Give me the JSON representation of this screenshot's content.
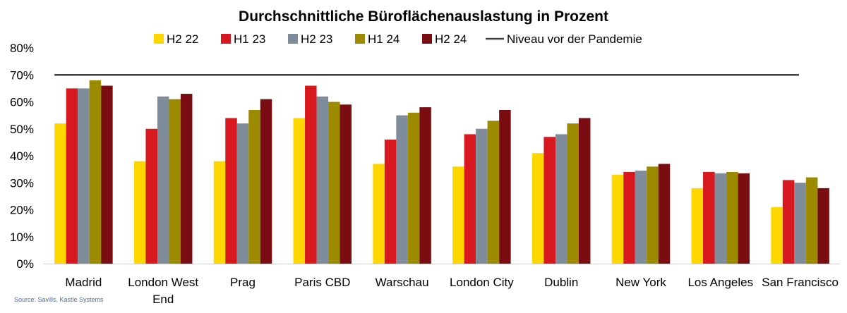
{
  "chart_data": {
    "type": "bar",
    "title": "Durchschnittliche Büroflächenauslastung in Prozent",
    "categories": [
      [
        "Madrid"
      ],
      [
        "London West",
        "End"
      ],
      [
        "Prag"
      ],
      [
        "Paris CBD"
      ],
      [
        "Warschau"
      ],
      [
        "London City"
      ],
      [
        "Dublin"
      ],
      [
        "New York"
      ],
      [
        "Los Angeles"
      ],
      [
        "San Francisco"
      ]
    ],
    "series": [
      {
        "name": "H2 22",
        "color": "#FFD700",
        "values": [
          52,
          38,
          38,
          54,
          37,
          36,
          41,
          33,
          28,
          21
        ]
      },
      {
        "name": "H1 23",
        "color": "#D7191F",
        "values": [
          65,
          50,
          54,
          66,
          46,
          48,
          47,
          34,
          34,
          31
        ]
      },
      {
        "name": "H2 23",
        "color": "#7F8C99",
        "values": [
          65,
          62,
          52,
          62,
          55,
          50,
          48,
          34.5,
          33.5,
          30
        ]
      },
      {
        "name": "H1 24",
        "color": "#9C8A00",
        "values": [
          68,
          61,
          57,
          60,
          56,
          53,
          52,
          36,
          34,
          32
        ]
      },
      {
        "name": "H2 24",
        "color": "#7A0D12",
        "values": [
          66,
          63,
          61,
          59,
          58,
          57,
          54,
          37,
          33.5,
          28
        ]
      }
    ],
    "reference_line": {
      "name": "Niveau vor der Pandemie",
      "value": 70,
      "color": "#404040"
    },
    "y_ticks": [
      "0%",
      "10%",
      "20%",
      "30%",
      "40%",
      "50%",
      "60%",
      "70%",
      "80%"
    ],
    "ylim": [
      0,
      80
    ],
    "xlabel": "",
    "ylabel": "",
    "grid": false,
    "legend_position": "top"
  },
  "source_note": "Source: Savills, Kastle Systems"
}
